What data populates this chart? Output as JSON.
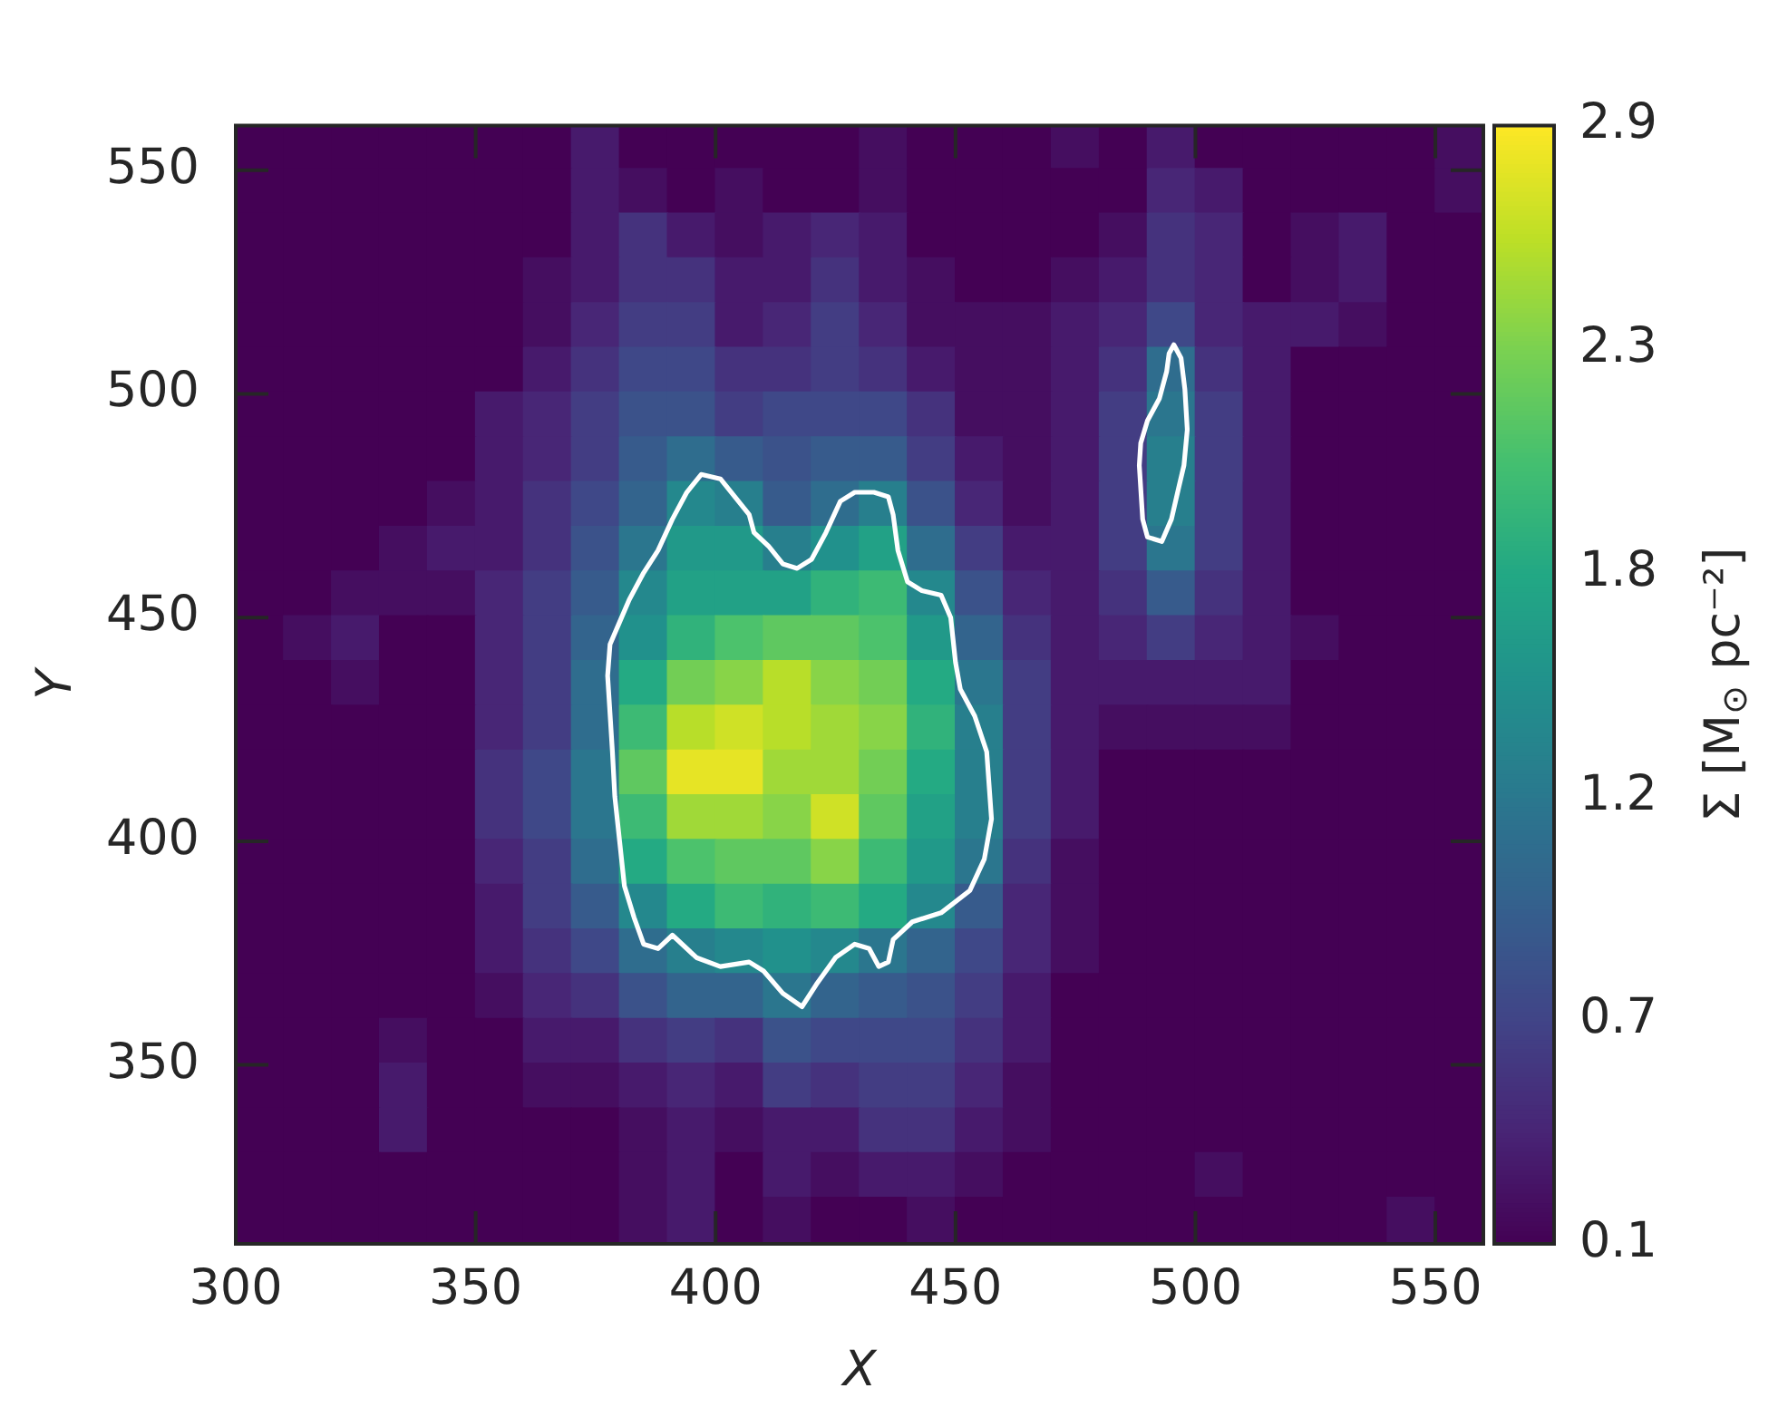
{
  "chart_data": {
    "type": "heatmap",
    "xlabel": "X",
    "ylabel": "Y",
    "clabel": "Σ [M$_{⊙}$ pc⁻²]",
    "x": [
      305,
      315,
      325,
      335,
      345,
      355,
      365,
      375,
      385,
      395,
      405,
      415,
      425,
      435,
      445,
      455,
      465,
      475,
      485,
      495,
      505,
      515,
      525,
      535,
      545,
      555
    ],
    "y": [
      555,
      545,
      535,
      525,
      515,
      505,
      495,
      485,
      475,
      465,
      455,
      445,
      435,
      425,
      415,
      405,
      395,
      385,
      375,
      365,
      355,
      345,
      335,
      325,
      315
    ],
    "xlim": [
      300,
      560
    ],
    "ylim": [
      310,
      560
    ],
    "xticks": [
      300,
      350,
      400,
      450,
      500,
      550
    ],
    "yticks": [
      350,
      400,
      450,
      500,
      550
    ],
    "clim": [
      0.1,
      2.9
    ],
    "cticks": [
      {
        "value": 0.1,
        "label": "0.1"
      },
      {
        "value": 0.66,
        "label": "0.7"
      },
      {
        "value": 1.22,
        "label": "1.2"
      },
      {
        "value": 1.78,
        "label": "1.8"
      },
      {
        "value": 2.34,
        "label": "2.3"
      },
      {
        "value": 2.9,
        "label": "2.9"
      }
    ],
    "cells": [
      [
        0.1,
        0.1,
        0.1,
        0.1,
        0.1,
        0.1,
        0.1,
        0.3,
        0.1,
        0.1,
        0.1,
        0.1,
        0.1,
        0.2,
        0.1,
        0.1,
        0.1,
        0.2,
        0.1,
        0.3,
        0.1,
        0.1,
        0.1,
        0.1,
        0.1,
        0.2
      ],
      [
        0.1,
        0.1,
        0.1,
        0.1,
        0.1,
        0.1,
        0.1,
        0.3,
        0.2,
        0.1,
        0.2,
        0.1,
        0.1,
        0.2,
        0.1,
        0.1,
        0.1,
        0.1,
        0.1,
        0.4,
        0.3,
        0.1,
        0.1,
        0.1,
        0.1,
        0.2
      ],
      [
        0.1,
        0.1,
        0.1,
        0.1,
        0.1,
        0.1,
        0.1,
        0.3,
        0.5,
        0.3,
        0.2,
        0.3,
        0.4,
        0.3,
        0.1,
        0.1,
        0.1,
        0.1,
        0.2,
        0.5,
        0.4,
        0.1,
        0.2,
        0.3,
        0.1,
        0.1
      ],
      [
        0.1,
        0.1,
        0.1,
        0.1,
        0.1,
        0.1,
        0.2,
        0.3,
        0.5,
        0.5,
        0.3,
        0.3,
        0.5,
        0.3,
        0.2,
        0.1,
        0.1,
        0.2,
        0.3,
        0.5,
        0.4,
        0.1,
        0.2,
        0.3,
        0.1,
        0.1
      ],
      [
        0.1,
        0.1,
        0.1,
        0.1,
        0.1,
        0.1,
        0.2,
        0.4,
        0.6,
        0.6,
        0.3,
        0.4,
        0.6,
        0.4,
        0.2,
        0.2,
        0.2,
        0.3,
        0.4,
        0.7,
        0.4,
        0.3,
        0.3,
        0.2,
        0.1,
        0.1
      ],
      [
        0.1,
        0.1,
        0.1,
        0.1,
        0.1,
        0.1,
        0.3,
        0.5,
        0.7,
        0.7,
        0.5,
        0.5,
        0.6,
        0.5,
        0.3,
        0.2,
        0.2,
        0.3,
        0.5,
        1.1,
        0.5,
        0.3,
        0.1,
        0.1,
        0.1,
        0.1
      ],
      [
        0.1,
        0.1,
        0.1,
        0.1,
        0.1,
        0.3,
        0.4,
        0.6,
        0.8,
        0.8,
        0.6,
        0.7,
        0.7,
        0.7,
        0.5,
        0.2,
        0.2,
        0.3,
        0.6,
        1.2,
        0.6,
        0.3,
        0.1,
        0.1,
        0.1,
        0.1
      ],
      [
        0.1,
        0.1,
        0.1,
        0.1,
        0.1,
        0.3,
        0.4,
        0.6,
        0.9,
        1.1,
        0.9,
        0.8,
        0.9,
        0.9,
        0.6,
        0.3,
        0.2,
        0.3,
        0.6,
        1.3,
        0.6,
        0.3,
        0.1,
        0.1,
        0.1,
        0.1
      ],
      [
        0.1,
        0.1,
        0.1,
        0.1,
        0.2,
        0.3,
        0.5,
        0.7,
        1.0,
        1.4,
        1.3,
        0.9,
        1.1,
        1.3,
        0.8,
        0.4,
        0.2,
        0.3,
        0.6,
        1.3,
        0.6,
        0.3,
        0.1,
        0.1,
        0.1,
        0.1
      ],
      [
        0.1,
        0.1,
        0.1,
        0.2,
        0.3,
        0.3,
        0.5,
        0.8,
        1.2,
        1.6,
        1.6,
        1.3,
        1.5,
        1.7,
        1.1,
        0.6,
        0.3,
        0.3,
        0.6,
        1.2,
        0.6,
        0.3,
        0.1,
        0.1,
        0.1,
        0.1
      ],
      [
        0.1,
        0.1,
        0.2,
        0.2,
        0.2,
        0.4,
        0.6,
        0.9,
        1.4,
        1.7,
        1.7,
        1.7,
        1.9,
        2.0,
        1.4,
        0.8,
        0.4,
        0.3,
        0.5,
        0.9,
        0.5,
        0.3,
        0.1,
        0.1,
        0.1,
        0.1
      ],
      [
        0.1,
        0.2,
        0.3,
        0.1,
        0.1,
        0.4,
        0.6,
        1.0,
        1.5,
        1.9,
        2.1,
        2.2,
        2.2,
        2.1,
        1.6,
        1.0,
        0.5,
        0.3,
        0.4,
        0.6,
        0.4,
        0.3,
        0.2,
        0.1,
        0.1,
        0.1
      ],
      [
        0.1,
        0.1,
        0.2,
        0.1,
        0.1,
        0.4,
        0.6,
        1.1,
        1.8,
        2.3,
        2.4,
        2.6,
        2.4,
        2.3,
        1.8,
        1.2,
        0.6,
        0.3,
        0.3,
        0.3,
        0.3,
        0.3,
        0.1,
        0.1,
        0.1,
        0.1
      ],
      [
        0.1,
        0.1,
        0.1,
        0.1,
        0.1,
        0.4,
        0.6,
        1.1,
        2.0,
        2.6,
        2.7,
        2.6,
        2.5,
        2.4,
        1.9,
        1.3,
        0.6,
        0.3,
        0.2,
        0.2,
        0.2,
        0.2,
        0.1,
        0.1,
        0.1,
        0.1
      ],
      [
        0.1,
        0.1,
        0.1,
        0.1,
        0.1,
        0.5,
        0.7,
        1.2,
        2.2,
        2.8,
        2.8,
        2.5,
        2.5,
        2.3,
        1.8,
        1.3,
        0.6,
        0.3,
        0.1,
        0.1,
        0.1,
        0.1,
        0.1,
        0.1,
        0.1,
        0.1
      ],
      [
        0.1,
        0.1,
        0.1,
        0.1,
        0.1,
        0.5,
        0.7,
        1.2,
        2.0,
        2.5,
        2.5,
        2.4,
        2.7,
        2.2,
        1.7,
        1.3,
        0.6,
        0.3,
        0.1,
        0.1,
        0.1,
        0.1,
        0.1,
        0.1,
        0.1,
        0.1
      ],
      [
        0.1,
        0.1,
        0.1,
        0.1,
        0.1,
        0.4,
        0.6,
        1.1,
        1.8,
        2.1,
        2.2,
        2.2,
        2.4,
        2.0,
        1.6,
        1.2,
        0.5,
        0.2,
        0.1,
        0.1,
        0.1,
        0.1,
        0.1,
        0.1,
        0.1,
        0.1
      ],
      [
        0.1,
        0.1,
        0.1,
        0.1,
        0.1,
        0.3,
        0.6,
        0.9,
        1.4,
        1.8,
        2.0,
        1.9,
        2.0,
        1.8,
        1.4,
        0.9,
        0.4,
        0.2,
        0.1,
        0.1,
        0.1,
        0.1,
        0.1,
        0.1,
        0.1,
        0.1
      ],
      [
        0.1,
        0.1,
        0.1,
        0.1,
        0.1,
        0.3,
        0.5,
        0.7,
        1.1,
        1.3,
        1.4,
        1.5,
        1.4,
        1.2,
        1.0,
        0.7,
        0.4,
        0.2,
        0.1,
        0.1,
        0.1,
        0.1,
        0.1,
        0.1,
        0.1,
        0.1
      ],
      [
        0.1,
        0.1,
        0.1,
        0.1,
        0.1,
        0.2,
        0.4,
        0.5,
        0.8,
        1.0,
        1.0,
        1.2,
        1.0,
        0.9,
        0.8,
        0.6,
        0.3,
        0.1,
        0.1,
        0.1,
        0.1,
        0.1,
        0.1,
        0.1,
        0.1,
        0.1
      ],
      [
        0.1,
        0.1,
        0.1,
        0.2,
        0.1,
        0.1,
        0.3,
        0.3,
        0.5,
        0.6,
        0.5,
        0.8,
        0.7,
        0.7,
        0.7,
        0.5,
        0.3,
        0.1,
        0.1,
        0.1,
        0.1,
        0.1,
        0.1,
        0.1,
        0.1,
        0.1
      ],
      [
        0.1,
        0.1,
        0.1,
        0.3,
        0.1,
        0.1,
        0.2,
        0.2,
        0.3,
        0.4,
        0.3,
        0.6,
        0.5,
        0.6,
        0.6,
        0.4,
        0.2,
        0.1,
        0.1,
        0.1,
        0.1,
        0.1,
        0.1,
        0.1,
        0.1,
        0.1
      ],
      [
        0.1,
        0.1,
        0.1,
        0.3,
        0.1,
        0.1,
        0.1,
        0.1,
        0.2,
        0.3,
        0.2,
        0.3,
        0.3,
        0.5,
        0.5,
        0.3,
        0.2,
        0.1,
        0.1,
        0.1,
        0.1,
        0.1,
        0.1,
        0.1,
        0.1,
        0.1
      ],
      [
        0.1,
        0.1,
        0.1,
        0.1,
        0.1,
        0.1,
        0.1,
        0.1,
        0.2,
        0.3,
        0.1,
        0.3,
        0.2,
        0.3,
        0.3,
        0.2,
        0.1,
        0.1,
        0.1,
        0.1,
        0.2,
        0.1,
        0.1,
        0.1,
        0.1,
        0.1
      ],
      [
        0.1,
        0.1,
        0.1,
        0.1,
        0.1,
        0.1,
        0.1,
        0.1,
        0.2,
        0.3,
        0.1,
        0.2,
        0.1,
        0.1,
        0.2,
        0.1,
        0.1,
        0.1,
        0.1,
        0.1,
        0.1,
        0.1,
        0.1,
        0.1,
        0.2,
        0.1
      ]
    ],
    "series": [
      {
        "type": "line",
        "color": "#ffffff",
        "x": [
          377.5,
          378,
          380,
          382,
          385,
          388,
          391,
          394,
          397,
          401,
          404,
          407,
          408,
          411,
          414,
          417,
          420,
          423,
          426,
          429,
          433,
          436,
          437,
          438,
          440,
          443,
          447,
          449,
          450,
          451,
          454,
          456.5,
          457.5,
          null,
          377.5,
          378.5,
          379,
          380,
          381,
          383,
          385,
          388,
          391,
          396,
          401,
          407,
          410,
          414,
          418,
          421,
          425,
          429,
          432,
          434,
          436,
          437,
          441,
          447,
          453,
          456,
          457.5
        ],
        "values": [
          437,
          444,
          449,
          454,
          460,
          465,
          472,
          478,
          482,
          481,
          477,
          473,
          469,
          466,
          462,
          461,
          463,
          469,
          476,
          478,
          478,
          477,
          473,
          465,
          458,
          456,
          455,
          450,
          440,
          434,
          428,
          420,
          405,
          null,
          437,
          420,
          410,
          400,
          390,
          383,
          377,
          376,
          379,
          374,
          372,
          373,
          371,
          366,
          363,
          368,
          374,
          377,
          376,
          372,
          373,
          378,
          382,
          384,
          389,
          396,
          405
        ]
      },
      {
        "type": "line",
        "color": "#ffffff",
        "x": [
          488.3,
          488.6,
          490,
          492.5,
          494,
          494.5,
          495.5,
          497,
          497.8,
          498.3,
          null,
          488.3,
          489,
          490,
          493,
          495,
          496.5,
          497.6,
          498.3
        ],
        "values": [
          484,
          489,
          494,
          499,
          505,
          509,
          511,
          508,
          501,
          492,
          null,
          484,
          472,
          468,
          467,
          472,
          479,
          484,
          492
        ]
      }
    ]
  }
}
